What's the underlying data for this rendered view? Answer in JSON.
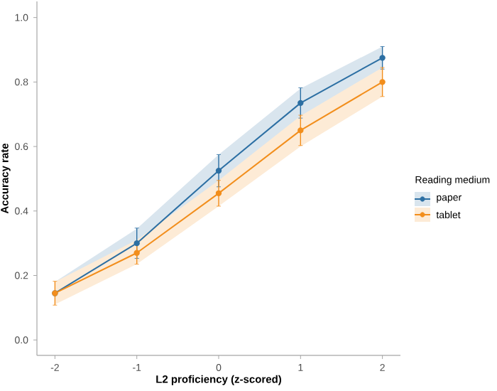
{
  "chart_data": {
    "type": "line",
    "xlabel": "L2 proficiency (z-scored)",
    "ylabel": "Accuracy rate",
    "legend_title": "Reading medium",
    "x": [
      -2,
      -1,
      0,
      1,
      2
    ],
    "series": [
      {
        "name": "paper",
        "color": "#2c6fa3",
        "values": [
          0.145,
          0.3,
          0.525,
          0.735,
          0.875
        ],
        "errors": [
          null,
          0.047,
          0.05,
          0.047,
          0.035
        ],
        "lower": [
          0.12,
          0.26,
          0.475,
          0.69,
          0.84
        ],
        "upper": [
          0.18,
          0.345,
          0.575,
          0.78,
          0.91
        ]
      },
      {
        "name": "tablet",
        "color": "#f28e1c",
        "values": [
          0.145,
          0.27,
          0.455,
          0.65,
          0.8
        ],
        "errors": [
          0.037,
          0.035,
          0.04,
          0.047,
          0.045
        ],
        "lower": [
          0.11,
          0.235,
          0.415,
          0.6,
          0.755
        ],
        "upper": [
          0.18,
          0.31,
          0.495,
          0.695,
          0.845
        ]
      }
    ],
    "xlim": [
      -2.22,
      2.22
    ],
    "ylim": [
      -0.048,
      1.05
    ],
    "xticks": [
      -2,
      -1,
      0,
      1,
      2
    ],
    "yticks": [
      {
        "value": 0,
        "label": "0.0"
      },
      {
        "value": 0.2,
        "label": "0.2"
      },
      {
        "value": 0.4,
        "label": "0.4"
      },
      {
        "value": 0.6,
        "label": "0.6"
      },
      {
        "value": 0.8,
        "label": "0.8"
      },
      {
        "value": 1.0,
        "label": "1.0"
      }
    ],
    "grid": false,
    "legend": "right",
    "marker": "circle",
    "line_style": "solid"
  }
}
